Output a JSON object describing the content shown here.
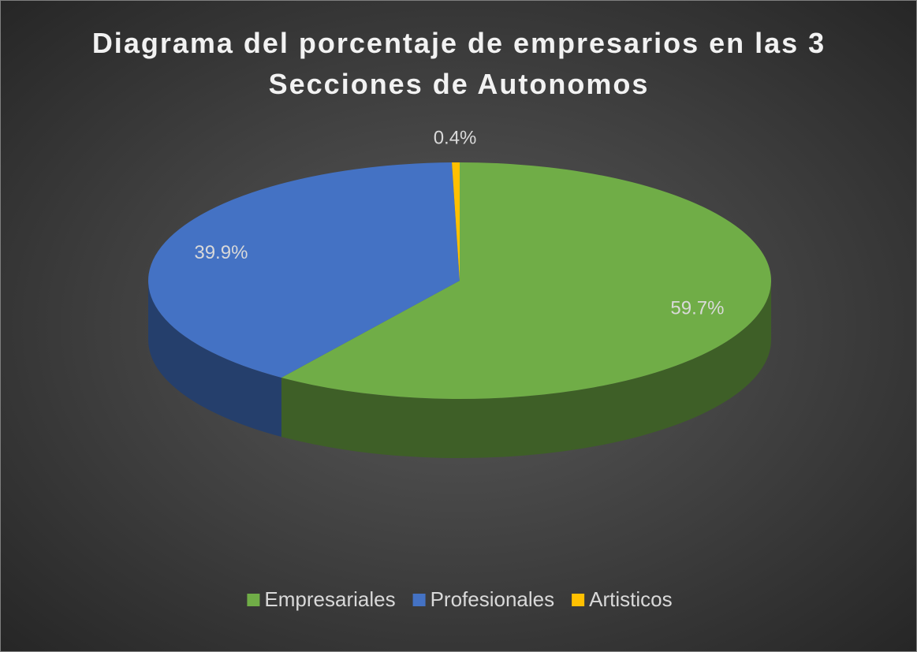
{
  "chart_data": {
    "type": "pie3d",
    "title": "Diagrama del porcentaje de empresarios en las 3 Secciones de Autonomos",
    "categories": [
      "Empresariales",
      "Profesionales",
      "Artisticos"
    ],
    "values": [
      59.7,
      39.9,
      0.4
    ],
    "value_labels": [
      "59.7%",
      "39.9%",
      "0.4%"
    ],
    "colors": [
      "#70ad47",
      "#4472c4",
      "#ffc000"
    ],
    "legend": "bottom"
  }
}
